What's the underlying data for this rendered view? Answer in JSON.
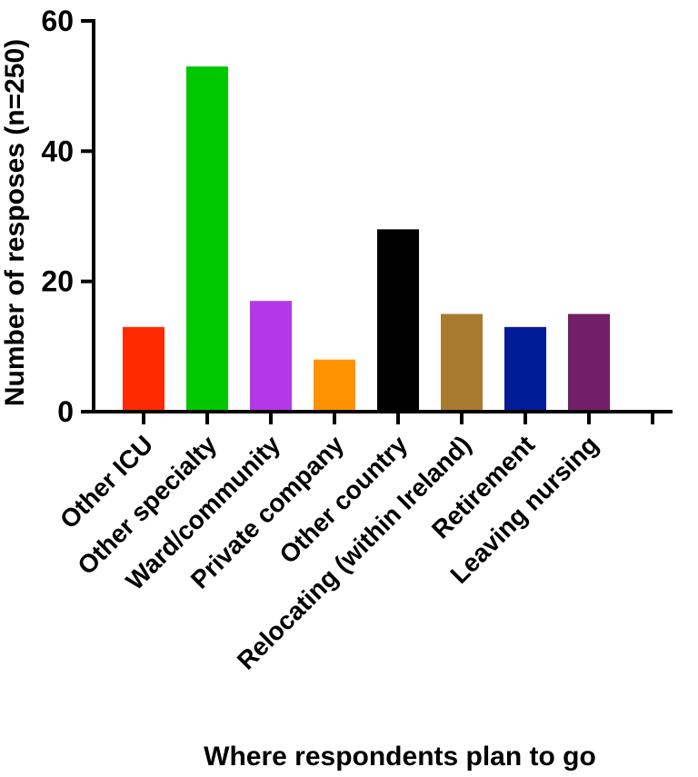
{
  "chart_data": {
    "type": "bar",
    "title": "",
    "xlabel": "Where respondents plan to go",
    "ylabel": "Number of resposes (n=250)",
    "categories": [
      "Other ICU",
      "Other specialty",
      "Ward/community",
      "Private company",
      "Other country",
      "Relocating (within Ireland)",
      "Retirement",
      "Leaving nursing"
    ],
    "values": [
      13,
      53,
      17,
      8,
      28,
      15,
      13,
      15
    ],
    "colors": [
      "#ff2a00",
      "#00c800",
      "#b438e8",
      "#ff9200",
      "#000000",
      "#a87b30",
      "#001c96",
      "#721e68"
    ],
    "ylim": [
      0,
      60
    ],
    "yticks": [
      0,
      20,
      40,
      60
    ],
    "grid": false,
    "legend": "none"
  }
}
